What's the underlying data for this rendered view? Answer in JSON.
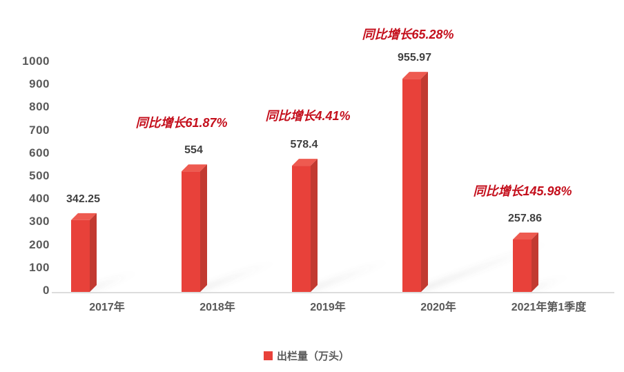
{
  "chart_data": {
    "type": "bar",
    "title": "",
    "categories": [
      "2017年",
      "2018年",
      "2019年",
      "2020年",
      "2021年第1季度"
    ],
    "values": [
      342.25,
      554,
      578.4,
      955.97,
      257.86
    ],
    "value_labels": [
      "342.25",
      "554",
      "578.4",
      "955.97",
      "257.86"
    ],
    "growth_annotations": [
      null,
      "同比增长61.87%",
      "同比增长4.41%",
      "同比增长65.28%",
      "同比增长145.98%"
    ],
    "series_name": "出栏量（万头）",
    "xlabel": "",
    "ylabel": "",
    "ylim": [
      0,
      1000
    ],
    "ytick_interval": 100,
    "yticks": [
      0,
      100,
      200,
      300,
      400,
      500,
      600,
      700,
      800,
      900,
      1000
    ],
    "grid": false,
    "legend_position": "bottom",
    "legend": [
      {
        "label": "出栏量（万头）",
        "color": "#e8413a"
      }
    ],
    "bar_style": "3d"
  },
  "colors": {
    "background": "#ffffff",
    "bar_front": "#e8413a",
    "bar_side": "#c23a31",
    "bar_top": "#ee5a50",
    "annotation": "#c40f1c",
    "axis_text": "#595959",
    "value_text": "#404040",
    "axis_line": "#dcdcdc",
    "shadow": "#6e6e6e"
  }
}
